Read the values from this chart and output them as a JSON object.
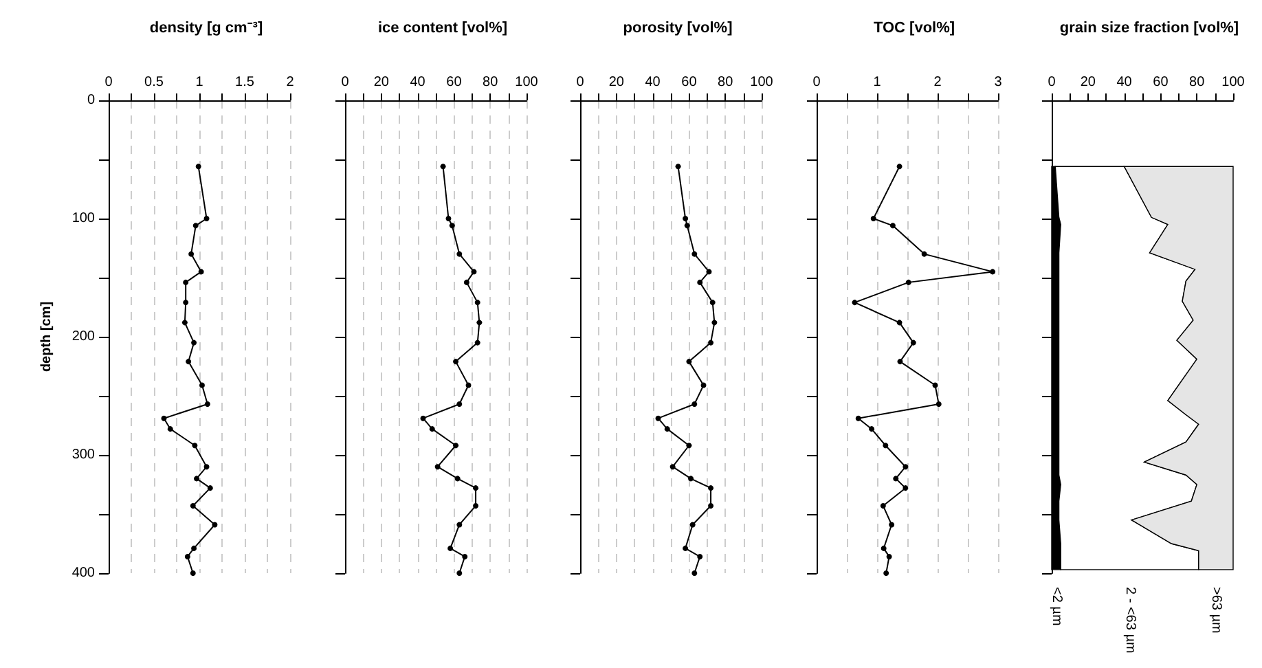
{
  "chart_data": [
    {
      "type": "line",
      "title": "density [g cm⁻³]",
      "ylabel": "depth [cm]",
      "orientation": "horizontal",
      "marker": "circle",
      "line_style": "solid",
      "grid": "x",
      "x": [
        56,
        100,
        106,
        130,
        145,
        154,
        171,
        188,
        205,
        221,
        241,
        257,
        269,
        278,
        292,
        310,
        320,
        328,
        343,
        359,
        379,
        386,
        400
      ],
      "series": [
        {
          "color": "#000000",
          "values": [
            0.99,
            1.08,
            0.96,
            0.91,
            1.02,
            0.85,
            0.85,
            0.84,
            0.94,
            0.88,
            1.03,
            1.09,
            0.61,
            0.68,
            0.95,
            1.08,
            0.97,
            1.12,
            0.93,
            1.17,
            0.94,
            0.87,
            0.93
          ]
        }
      ],
      "xlim": [
        0,
        2
      ],
      "xticks": [
        0,
        {
          "value": 0.25,
          "label": null
        },
        0.5,
        {
          "value": 0.75,
          "label": null
        },
        1,
        {
          "value": 1.25,
          "label": null
        },
        1.5,
        {
          "value": 1.75,
          "label": null
        },
        2
      ],
      "ylim": [
        400,
        0
      ],
      "yticks": [
        0,
        {
          "value": 50,
          "label": null
        },
        100,
        {
          "value": 150,
          "label": null
        },
        200,
        {
          "value": 250,
          "label": null
        },
        300,
        {
          "value": 350,
          "label": null
        },
        400
      ]
    },
    {
      "type": "line",
      "title": "ice content [vol%]",
      "orientation": "horizontal",
      "marker": "circle",
      "line_style": "solid",
      "grid": "x",
      "tick_labels": "x",
      "x": [
        56,
        100,
        106,
        130,
        145,
        154,
        171,
        188,
        205,
        221,
        241,
        257,
        269,
        278,
        292,
        310,
        320,
        328,
        343,
        359,
        379,
        386,
        400
      ],
      "series": [
        {
          "color": "#000000",
          "values": [
            54,
            57,
            59,
            63,
            71,
            67,
            73,
            74,
            73,
            61,
            68,
            63,
            43,
            48,
            61,
            51,
            62,
            72,
            72,
            63,
            58,
            66,
            63
          ]
        }
      ],
      "xlim": [
        0,
        100
      ],
      "xticks": [
        0,
        {
          "value": 10,
          "label": null
        },
        20,
        {
          "value": 30,
          "label": null
        },
        40,
        {
          "value": 50,
          "label": null
        },
        60,
        {
          "value": 70,
          "label": null
        },
        80,
        {
          "value": 90,
          "label": null
        },
        100
      ],
      "ylim": [
        400,
        0
      ],
      "yticks": [
        0,
        {
          "value": 50,
          "label": null
        },
        100,
        {
          "value": 150,
          "label": null
        },
        200,
        {
          "value": 250,
          "label": null
        },
        300,
        {
          "value": 350,
          "label": null
        },
        400
      ]
    },
    {
      "type": "line",
      "title": "porosity [vol%]",
      "orientation": "horizontal",
      "marker": "circle",
      "line_style": "solid",
      "grid": "x",
      "tick_labels": "x",
      "x": [
        56,
        100,
        106,
        130,
        145,
        154,
        171,
        188,
        205,
        221,
        241,
        257,
        269,
        278,
        292,
        310,
        320,
        328,
        343,
        359,
        379,
        386,
        400
      ],
      "series": [
        {
          "color": "#000000",
          "values": [
            54,
            58,
            59,
            63,
            71,
            66,
            73,
            74,
            72,
            60,
            68,
            63,
            43,
            48,
            60,
            51,
            61,
            72,
            72,
            62,
            58,
            66,
            63
          ]
        }
      ],
      "xlim": [
        0,
        100
      ],
      "xticks": [
        0,
        {
          "value": 10,
          "label": null
        },
        20,
        {
          "value": 30,
          "label": null
        },
        40,
        {
          "value": 50,
          "label": null
        },
        60,
        {
          "value": 70,
          "label": null
        },
        80,
        {
          "value": 90,
          "label": null
        },
        100
      ],
      "ylim": [
        400,
        0
      ],
      "yticks": [
        0,
        {
          "value": 50,
          "label": null
        },
        100,
        {
          "value": 150,
          "label": null
        },
        200,
        {
          "value": 250,
          "label": null
        },
        300,
        {
          "value": 350,
          "label": null
        },
        400
      ]
    },
    {
      "type": "line",
      "title": "TOC [vol%]",
      "orientation": "horizontal",
      "marker": "circle",
      "line_style": "solid",
      "grid": "x",
      "tick_labels": "x",
      "x": [
        56,
        100,
        106,
        130,
        145,
        154,
        171,
        188,
        205,
        221,
        241,
        257,
        269,
        278,
        292,
        310,
        320,
        328,
        343,
        359,
        379,
        386,
        400
      ],
      "series": [
        {
          "color": "#000000",
          "values": [
            1.37,
            0.94,
            1.26,
            1.78,
            2.91,
            1.52,
            0.63,
            1.37,
            1.6,
            1.38,
            1.96,
            2.02,
            0.69,
            0.91,
            1.14,
            1.47,
            1.31,
            1.47,
            1.1,
            1.24,
            1.11,
            1.2,
            1.15
          ]
        }
      ],
      "xlim": [
        0,
        3
      ],
      "xticks": [
        0,
        {
          "value": 0.5,
          "label": null
        },
        1,
        {
          "value": 1.5,
          "label": null
        },
        2,
        {
          "value": 2.5,
          "label": null
        },
        3
      ],
      "ylim": [
        400,
        0
      ],
      "yticks": [
        0,
        {
          "value": 50,
          "label": null
        },
        100,
        {
          "value": 150,
          "label": null
        },
        200,
        {
          "value": 250,
          "label": null
        },
        300,
        {
          "value": 350,
          "label": null
        },
        400
      ]
    },
    {
      "type": "area",
      "title": "grain size fraction [vol%]",
      "orientation": "horizontal",
      "stacked": true,
      "tick_labels": "x",
      "x": [
        56,
        99,
        105,
        129,
        143,
        153,
        170,
        186,
        203,
        219,
        254,
        266,
        274,
        289,
        306,
        317,
        325,
        339,
        355,
        375,
        381,
        397
      ],
      "series": [
        {
          "name": "<2 µm",
          "color": "#000000",
          "values": [
            2,
            4,
            5,
            4,
            4,
            4,
            4,
            4,
            4,
            4,
            4,
            4,
            4,
            4,
            4,
            4,
            5,
            4,
            4,
            5,
            5,
            5
          ]
        },
        {
          "name": "2 - <63 µm",
          "color": "#ffffff",
          "values": [
            38,
            51,
            59,
            50,
            75,
            70,
            68,
            74,
            65,
            76,
            60,
            70,
            77,
            70,
            47,
            70,
            75,
            73,
            40,
            61,
            76,
            76
          ]
        },
        {
          "name": ">63 µm",
          "color": "#e5e5e5",
          "values": [
            60,
            45,
            36,
            46,
            21,
            26,
            28,
            22,
            31,
            20,
            36,
            26,
            19,
            26,
            49,
            26,
            20,
            23,
            56,
            34,
            19,
            19
          ]
        }
      ],
      "xlim": [
        0,
        100
      ],
      "xticks": [
        0,
        {
          "value": 10,
          "label": null
        },
        20,
        {
          "value": 30,
          "label": null
        },
        40,
        {
          "value": 50,
          "label": null
        },
        60,
        {
          "value": 70,
          "label": null
        },
        80,
        {
          "value": 90,
          "label": null
        },
        100
      ],
      "ylim": [
        400,
        0
      ],
      "yticks": [
        0,
        {
          "value": 50,
          "label": null
        },
        100,
        {
          "value": 150,
          "label": null
        },
        200,
        {
          "value": 250,
          "label": null
        },
        300,
        {
          "value": 350,
          "label": null
        },
        400
      ]
    }
  ]
}
